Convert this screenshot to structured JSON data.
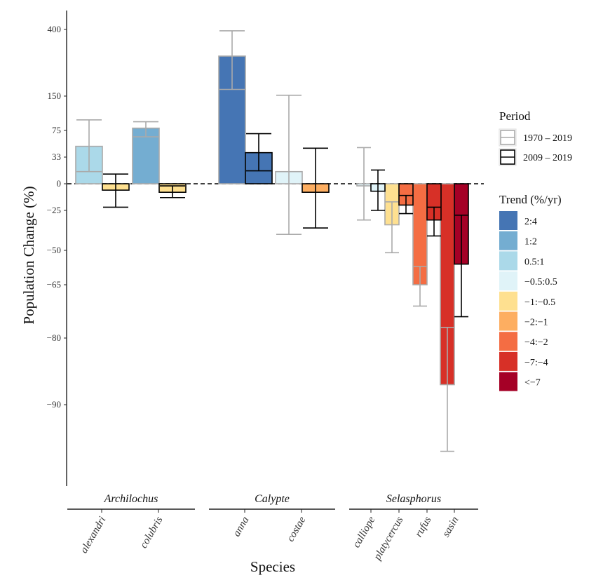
{
  "chart_data": {
    "type": "bar",
    "xlabel": "Species",
    "ylabel": "Population Change (%)",
    "y_ticks": [
      "400",
      "150",
      "75",
      "33",
      "0",
      "-25",
      "-50",
      "-65",
      "-80",
      "-90"
    ],
    "groups": [
      {
        "name": "Archilochus",
        "species": [
          "alexandri",
          "colubris"
        ]
      },
      {
        "name": "Calypte",
        "species": [
          "anna",
          "costae"
        ]
      },
      {
        "name": "Selasphorus",
        "species": [
          "calliope",
          "platycercus",
          "rufus",
          "sasin"
        ]
      }
    ],
    "series": [
      {
        "name": "1970 – 2019",
        "values": [
          {
            "species": "alexandri",
            "value": 50,
            "ci": [
              15,
              98
            ],
            "trend": "0.5:1"
          },
          {
            "species": "colubris",
            "value": 80,
            "ci": [
              65,
              94
            ],
            "trend": "1:2"
          },
          {
            "species": "anna",
            "value": 300,
            "ci": [
              175,
              395
            ],
            "trend": "2:4"
          },
          {
            "species": "costae",
            "value": 15,
            "ci": [
              -40,
              153
            ],
            "trend": "-0.5:0.5"
          },
          {
            "species": "calliope",
            "value": -2,
            "ci": [
              -31,
              48
            ],
            "trend": "-0.5:0.5"
          },
          {
            "species": "platycercus",
            "value": -34,
            "ci": [
              -51,
              -17
            ],
            "trend": "-1:-0.5"
          },
          {
            "species": "rufus",
            "value": -65,
            "ci": [
              -71,
              -57
            ],
            "trend": "-4:-2"
          },
          {
            "species": "sasin",
            "value": -87,
            "ci": [
              -97,
              -77
            ],
            "trend": "-7:-4"
          }
        ]
      },
      {
        "name": "2009 – 2019",
        "values": [
          {
            "species": "alexandri",
            "value": -6,
            "ci": [
              -22,
              12
            ],
            "trend": "-1:-0.5"
          },
          {
            "species": "colubris",
            "value": -8,
            "ci": [
              -13,
              -2
            ],
            "trend": "-1:-0.5"
          },
          {
            "species": "anna",
            "value": 40,
            "ci": [
              16,
              70
            ],
            "trend": "2:4"
          },
          {
            "species": "costae",
            "value": -8,
            "ci": [
              -36,
              47
            ],
            "trend": "-2:-1"
          },
          {
            "species": "calliope",
            "value": -7,
            "ci": [
              -25,
              17
            ],
            "trend": "-0.5:0.5"
          },
          {
            "species": "platycercus",
            "value": -20,
            "ci": [
              -27,
              -11
            ],
            "trend": "-4:-2"
          },
          {
            "species": "rufus",
            "value": -31,
            "ci": [
              -41,
              -22
            ],
            "trend": "-7:-4"
          },
          {
            "species": "sasin",
            "value": -56,
            "ci": [
              -74,
              -28
            ],
            "trend": "<-7"
          }
        ]
      }
    ],
    "legend": {
      "period_title": "Period",
      "trend_title": "Trend (%/yr)",
      "trend_classes": [
        {
          "label": "2:4",
          "color": "#4575b4"
        },
        {
          "label": "1:2",
          "color": "#74add1"
        },
        {
          "label": "0.5:1",
          "color": "#abd9e9"
        },
        {
          "label": "−0.5:0.5",
          "color": "#e0f3f8"
        },
        {
          "label": "−1:−0.5",
          "color": "#fee090"
        },
        {
          "label": "−2:−1",
          "color": "#fdae61"
        },
        {
          "label": "−4:−2",
          "color": "#f46d43"
        },
        {
          "label": "−7:−4",
          "color": "#d73027"
        },
        {
          "label": "<−7",
          "color": "#a50026"
        }
      ]
    },
    "colors": {
      "period_1970_outline": "#aaaaaa",
      "period_2009_outline": "#000000"
    }
  }
}
